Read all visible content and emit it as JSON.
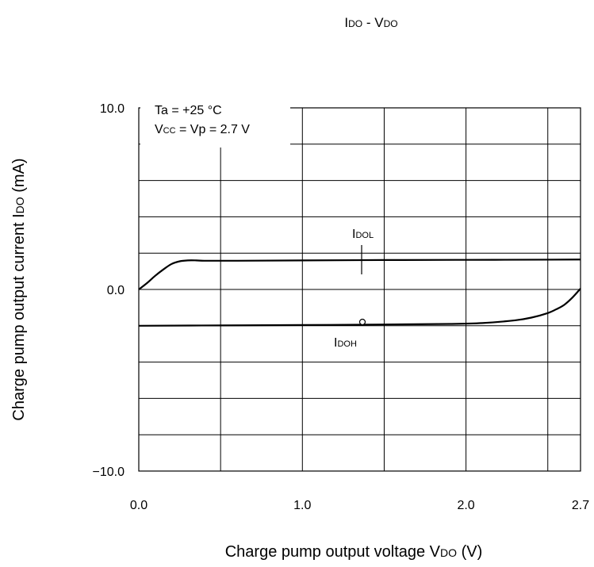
{
  "chart_data": {
    "type": "line",
    "title": {
      "main": "I",
      "sub": "DO",
      "mid": " - V",
      "sub2": "DO"
    },
    "xlabel": {
      "main": "Charge pump output voltage V",
      "sub": "DO",
      "tail": " (V)"
    },
    "ylabel": {
      "main": "Charge pump output current I",
      "sub": "DO",
      "tail": " (mA)"
    },
    "xlim": [
      0.0,
      2.7
    ],
    "ylim": [
      -10.0,
      10.0
    ],
    "x_ticks": [
      {
        "value": 0.0,
        "label": "0.0"
      },
      {
        "value": 1.0,
        "label": "1.0"
      },
      {
        "value": 2.0,
        "label": "2.0"
      },
      {
        "value": 2.7,
        "label": "2.7"
      }
    ],
    "y_ticks": [
      {
        "value": 10.0,
        "label": "10.0"
      },
      {
        "value": 0.0,
        "label": "0.0"
      },
      {
        "value": -10.0,
        "label": "−10.0"
      }
    ],
    "x_grid": [
      0.5,
      1.0,
      1.5,
      2.0,
      2.5
    ],
    "y_grid": [
      -8,
      -6,
      -4,
      -2,
      0,
      2,
      4,
      6,
      8
    ],
    "grid": true,
    "conditions": [
      "Ta = +25 °C",
      {
        "a": "V",
        "b": "CC",
        "c": " = Vp = 2.7 V"
      }
    ],
    "series": [
      {
        "label": {
          "main": "I",
          "sub": "DOL"
        },
        "x": [
          0.0,
          0.05,
          0.1,
          0.15,
          0.2,
          0.25,
          0.3,
          0.35,
          0.4,
          0.6,
          1.0,
          1.5,
          2.0,
          2.5,
          2.7
        ],
        "y": [
          0.0,
          0.35,
          0.75,
          1.1,
          1.4,
          1.55,
          1.6,
          1.6,
          1.58,
          1.58,
          1.6,
          1.62,
          1.63,
          1.64,
          1.65
        ]
      },
      {
        "label": {
          "main": "I",
          "sub": "DOH"
        },
        "x": [
          0.0,
          0.5,
          1.0,
          1.5,
          1.9,
          2.1,
          2.3,
          2.4,
          2.5,
          2.55,
          2.6,
          2.65,
          2.7
        ],
        "y": [
          -2.0,
          -1.98,
          -1.96,
          -1.93,
          -1.9,
          -1.85,
          -1.7,
          -1.55,
          -1.3,
          -1.1,
          -0.85,
          -0.45,
          0.05
        ]
      }
    ]
  }
}
